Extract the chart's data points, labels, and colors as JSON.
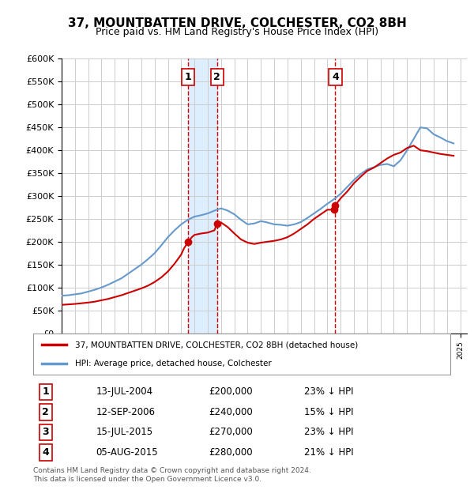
{
  "title": "37, MOUNTBATTEN DRIVE, COLCHESTER, CO2 8BH",
  "subtitle": "Price paid vs. HM Land Registry's House Price Index (HPI)",
  "ylabel": "",
  "xlabel": "",
  "ylim": [
    0,
    600000
  ],
  "yticks": [
    0,
    50000,
    100000,
    150000,
    200000,
    250000,
    300000,
    350000,
    400000,
    450000,
    500000,
    550000,
    600000
  ],
  "ytick_labels": [
    "£0",
    "£50K",
    "£100K",
    "£150K",
    "£200K",
    "£250K",
    "£300K",
    "£350K",
    "£400K",
    "£450K",
    "£500K",
    "£550K",
    "£600K"
  ],
  "xlim_start": 1995.0,
  "xlim_end": 2025.5,
  "legend_line1": "37, MOUNTBATTEN DRIVE, COLCHESTER, CO2 8BH (detached house)",
  "legend_line2": "HPI: Average price, detached house, Colchester",
  "footer": "Contains HM Land Registry data © Crown copyright and database right 2024.\nThis data is licensed under the Open Government Licence v3.0.",
  "transactions": [
    {
      "num": 1,
      "date": "13-JUL-2004",
      "price": 200000,
      "pct": "23%",
      "x": 2004.53
    },
    {
      "num": 2,
      "date": "12-SEP-2006",
      "price": 240000,
      "pct": "15%",
      "x": 2006.7
    },
    {
      "num": 3,
      "date": "15-JUL-2015",
      "price": 270000,
      "pct": "23%",
      "x": 2015.53
    },
    {
      "num": 4,
      "date": "05-AUG-2015",
      "price": 280000,
      "pct": "21%",
      "x": 2015.6
    }
  ],
  "hpi_line_color": "#6699cc",
  "property_line_color": "#cc0000",
  "marker_color": "#cc0000",
  "vline_color": "#cc0000",
  "box_color": "#cc0000",
  "shaded_color": "#ddeeff",
  "background_color": "#ffffff",
  "grid_color": "#cccccc",
  "hpi_x": [
    1995,
    1995.5,
    1996,
    1996.5,
    1997,
    1997.5,
    1998,
    1998.5,
    1999,
    1999.5,
    2000,
    2000.5,
    2001,
    2001.5,
    2002,
    2002.5,
    2003,
    2003.5,
    2004,
    2004.5,
    2005,
    2005.5,
    2006,
    2006.5,
    2007,
    2007.5,
    2008,
    2008.5,
    2009,
    2009.5,
    2010,
    2010.5,
    2011,
    2011.5,
    2012,
    2012.5,
    2013,
    2013.5,
    2014,
    2014.5,
    2015,
    2015.5,
    2016,
    2016.5,
    2017,
    2017.5,
    2018,
    2018.5,
    2019,
    2019.5,
    2020,
    2020.5,
    2021,
    2021.5,
    2022,
    2022.5,
    2023,
    2023.5,
    2024,
    2024.5
  ],
  "hpi_y": [
    82000,
    83000,
    85000,
    87000,
    91000,
    95000,
    100000,
    106000,
    113000,
    120000,
    130000,
    140000,
    150000,
    162000,
    175000,
    192000,
    210000,
    225000,
    238000,
    248000,
    255000,
    258000,
    262000,
    268000,
    273000,
    268000,
    260000,
    248000,
    238000,
    240000,
    245000,
    242000,
    238000,
    237000,
    235000,
    238000,
    243000,
    252000,
    262000,
    272000,
    283000,
    293000,
    305000,
    320000,
    335000,
    348000,
    358000,
    363000,
    368000,
    370000,
    365000,
    378000,
    400000,
    425000,
    450000,
    448000,
    435000,
    428000,
    420000,
    415000
  ],
  "prop_x": [
    1995,
    1995.5,
    1996,
    1996.5,
    1997,
    1997.5,
    1998,
    1998.5,
    1999,
    1999.5,
    2000,
    2000.5,
    2001,
    2001.5,
    2002,
    2002.5,
    2003,
    2003.5,
    2004,
    2004.2,
    2004.53,
    2004.8,
    2005,
    2005.5,
    2006,
    2006.5,
    2006.7,
    2007,
    2007.5,
    2008,
    2008.5,
    2009,
    2009.5,
    2010,
    2010.5,
    2011,
    2011.5,
    2012,
    2012.5,
    2013,
    2013.5,
    2014,
    2014.5,
    2015,
    2015.53,
    2015.6,
    2016,
    2016.5,
    2017,
    2017.5,
    2018,
    2018.5,
    2019,
    2019.5,
    2020,
    2020.5,
    2021,
    2021.5,
    2022,
    2022.5,
    2023,
    2023.5,
    2024,
    2024.5
  ],
  "prop_y": [
    62000,
    63000,
    64000,
    65500,
    67000,
    69000,
    72000,
    75000,
    79000,
    83000,
    88000,
    93000,
    98000,
    104000,
    112000,
    122000,
    135000,
    152000,
    172000,
    185000,
    200000,
    210000,
    215000,
    218000,
    220000,
    225000,
    240000,
    242000,
    232000,
    218000,
    205000,
    198000,
    195000,
    198000,
    200000,
    202000,
    205000,
    210000,
    218000,
    228000,
    238000,
    250000,
    260000,
    270000,
    270000,
    280000,
    295000,
    310000,
    328000,
    342000,
    355000,
    362000,
    372000,
    382000,
    390000,
    395000,
    405000,
    410000,
    400000,
    398000,
    395000,
    392000,
    390000,
    388000
  ]
}
